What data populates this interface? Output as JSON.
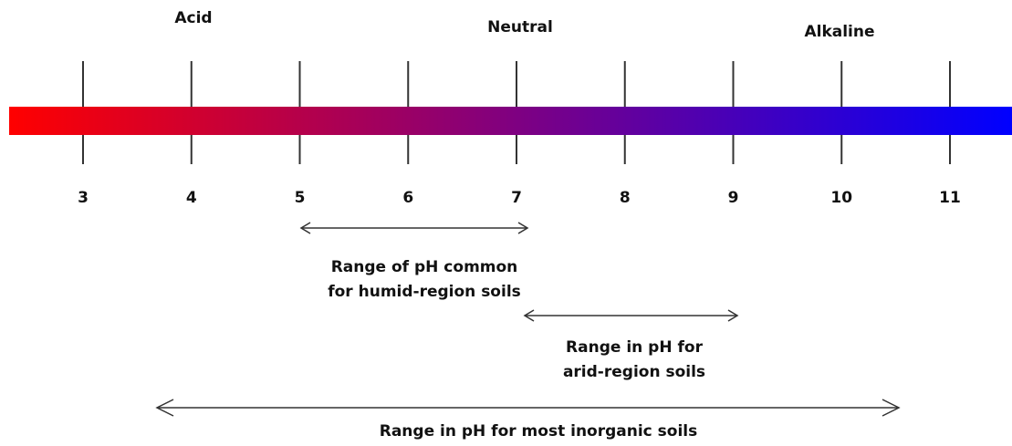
{
  "labels": {
    "acid": "Acid",
    "neutral": "Neutral",
    "alkaline": "Alkaline"
  },
  "scale": {
    "ticks": [
      3,
      4,
      5,
      6,
      7,
      8,
      9,
      10,
      11
    ]
  },
  "ranges": [
    {
      "lines": [
        "Range of pH common",
        "for humid-region soils"
      ]
    },
    {
      "lines": [
        "Range in pH for",
        "arid-region soils"
      ]
    },
    {
      "lines": [
        "Range in pH for most inorganic soils"
      ]
    }
  ]
}
